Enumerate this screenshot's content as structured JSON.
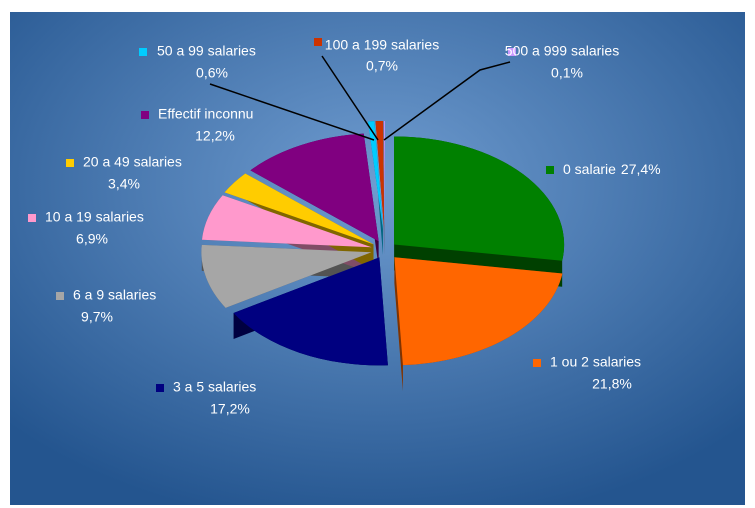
{
  "chart_data": {
    "type": "pie",
    "categories": [
      "0 salarie",
      "1 ou 2 salaries",
      "3 a 5 salaries",
      "6 a 9 salaries",
      "10 a 19 salaries",
      "20 a 49 salaries",
      "Effectif inconnu",
      "50 a 99 salaries",
      "100 a 199 salaries",
      "500 a 999 salaries"
    ],
    "values": [
      27.4,
      21.8,
      17.2,
      9.7,
      6.9,
      3.4,
      12.2,
      0.6,
      0.7,
      0.1
    ],
    "value_labels": [
      "27,4%",
      "21,8%",
      "17,2%",
      "9,7%",
      "6,9%",
      "3,4%",
      "12,2%",
      "0,6%",
      "0,7%",
      "0,1%"
    ],
    "colors": [
      "#008000",
      "#ff6600",
      "#000080",
      "#a6a6a6",
      "#ff99cc",
      "#ffcc00",
      "#800080",
      "#00ccff",
      "#cc3300",
      "#cc99ff"
    ]
  }
}
